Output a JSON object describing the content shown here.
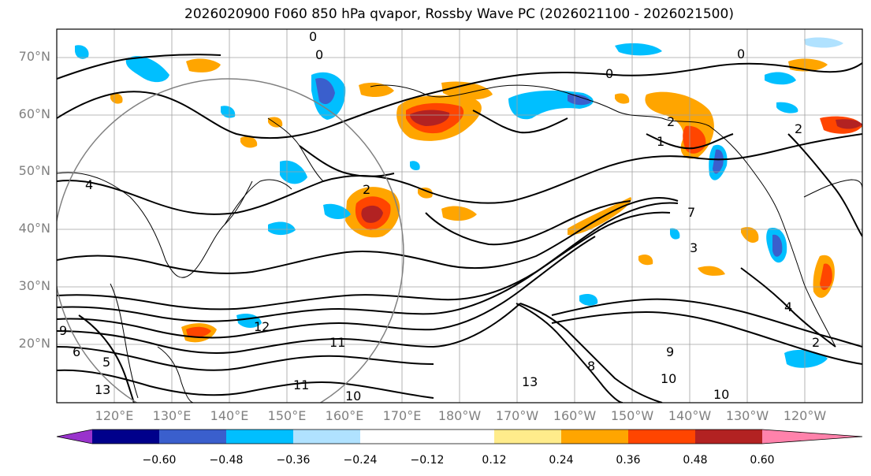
{
  "title": "2026020900 F060 850 hPa qvapor, Rossby Wave PC (2026021100 - 2026021500)",
  "map": {
    "lat_labels": [
      "70°N",
      "60°N",
      "50°N",
      "40°N",
      "30°N",
      "20°N"
    ],
    "lon_labels": [
      "120°E",
      "130°E",
      "140°E",
      "150°E",
      "160°E",
      "170°E",
      "180°W",
      "170°W",
      "160°W",
      "150°W",
      "140°W",
      "130°W",
      "120°W"
    ],
    "contour_labels": [
      "0",
      "0",
      "0",
      "0",
      "1",
      "2",
      "2",
      "2",
      "2",
      "3",
      "4",
      "4",
      "5",
      "6",
      "7",
      "8",
      "9",
      "9",
      "10",
      "10",
      "10",
      "11",
      "11",
      "12",
      "13",
      "13"
    ]
  },
  "colorbar": {
    "colors": [
      "#9933cc",
      "#00008b",
      "#3a5fcd",
      "#00bfff",
      "#b0e2ff",
      "#ffffff",
      "#ffec8b",
      "#ffa500",
      "#ff4500",
      "#b22222",
      "#ff82ab"
    ],
    "ticks": [
      "−0.60",
      "−0.48",
      "−0.36",
      "−0.24",
      "−0.12",
      "0.12",
      "0.24",
      "0.36",
      "0.48",
      "0.60"
    ]
  },
  "features": {
    "land_color": "#ffffff",
    "grid_color": "#a0a0a0",
    "contour_color": "#000000"
  }
}
